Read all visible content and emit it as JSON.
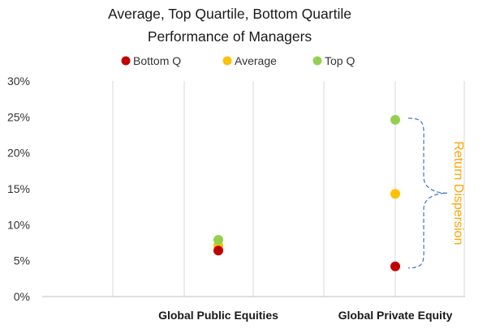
{
  "chart_data": {
    "type": "scatter",
    "title_lines": [
      "Average, Top Quartile, Bottom Quartile",
      "Performance of Managers"
    ],
    "categories": [
      "Global Public Equities",
      "Global Private Equity"
    ],
    "ylim": [
      0,
      30
    ],
    "ytick_values": [
      0,
      5,
      10,
      15,
      20,
      25,
      30
    ],
    "ytick_labels": [
      "0%",
      "5%",
      "10%",
      "15%",
      "20%",
      "25%",
      "30%"
    ],
    "series": [
      {
        "name": "Bottom Q",
        "color": "#c00000",
        "values": [
          6.4,
          4.2
        ]
      },
      {
        "name": "Average",
        "color": "#ffc000",
        "values": [
          7.1,
          14.3
        ]
      },
      {
        "name": "Top Q",
        "color": "#92d050",
        "values": [
          7.9,
          24.6
        ]
      }
    ],
    "annotation": {
      "text": "Return Dispersion",
      "color": "#ffa500",
      "bracket_color": "#4472c4",
      "category": "Global Private Equity",
      "from_value": 4.2,
      "to_value": 24.6
    },
    "grid": {
      "vertical": true,
      "horizontal": false,
      "color": "#d9d9d9"
    },
    "legend_position": "top"
  }
}
